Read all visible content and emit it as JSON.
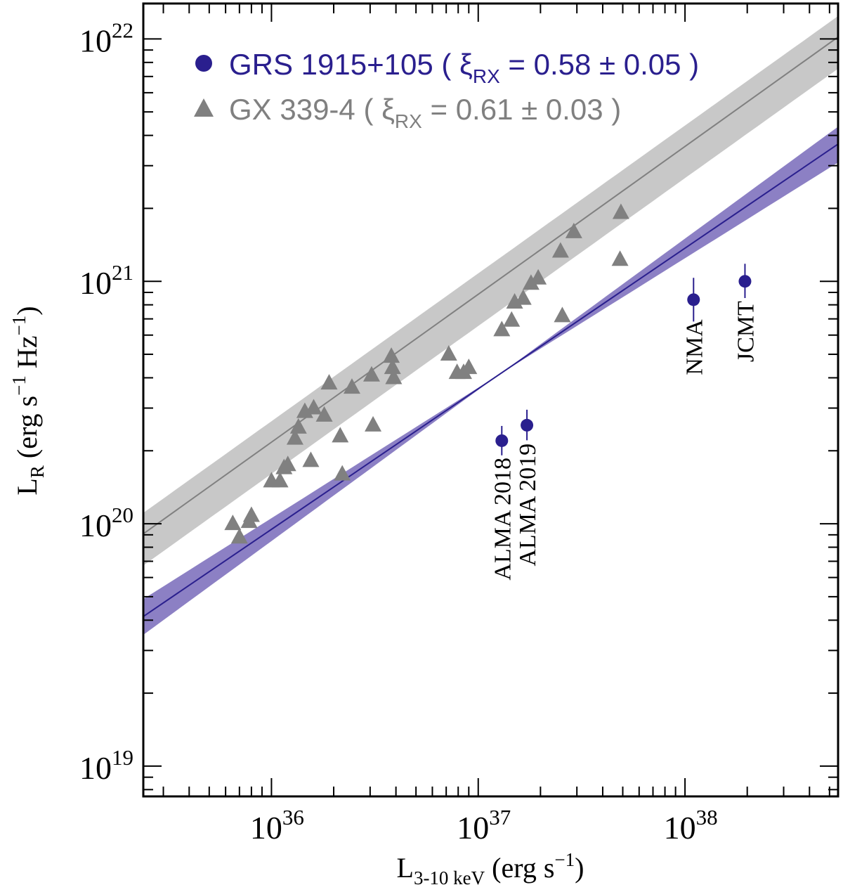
{
  "chart_data": {
    "type": "scatter",
    "title": "",
    "xlabel": {
      "main": "L",
      "sub": "3-10 keV",
      "unit_pre": " (erg s",
      "unit_sup": "−1",
      "unit_post": ")"
    },
    "ylabel": {
      "main": "L",
      "sub": "R",
      "p1": " (erg s",
      "s1": "−1",
      "p2": " Hz",
      "s2": "−1",
      "p3": ")"
    },
    "xscale": "log",
    "yscale": "log",
    "xlim": [
      2.4e+35,
      5.5e+38
    ],
    "ylim": [
      7.5e+18,
      1.4e+22
    ],
    "x_ticks": [
      {
        "value": 1e+36,
        "base": "10",
        "exp": "36"
      },
      {
        "value": 1e+37,
        "base": "10",
        "exp": "37"
      },
      {
        "value": 1e+38,
        "base": "10",
        "exp": "38"
      }
    ],
    "y_ticks": [
      {
        "value": 1e+19,
        "base": "10",
        "exp": "19"
      },
      {
        "value": 1e+20,
        "base": "10",
        "exp": "20"
      },
      {
        "value": 1e+21,
        "base": "10",
        "exp": "21"
      },
      {
        "value": 1e+22,
        "base": "10",
        "exp": "22"
      }
    ],
    "legend_position": "top-left",
    "series": [
      {
        "name": "GX 339-4",
        "legend": {
          "pre": "GX 339-4 ( ",
          "xi": "ξ",
          "sub": "RX",
          "post": " = 0.61 ± 0.03 )"
        },
        "marker": "triangle",
        "color": "#808080",
        "band_color": "#c8c8c8",
        "fit": {
          "slope": 0.61,
          "norm_at_1e36": 2.17e+20,
          "band_low_factor": 0.74,
          "band_high_factor": 1.22
        },
        "points": [
          {
            "x": 6.5e+35,
            "y": 1e+20
          },
          {
            "x": 7e+35,
            "y": 8.8e+19
          },
          {
            "x": 7.8e+35,
            "y": 1.02e+20
          },
          {
            "x": 8e+35,
            "y": 1.08e+20
          },
          {
            "x": 1e+36,
            "y": 1.5e+20
          },
          {
            "x": 1.1e+36,
            "y": 1.5e+20
          },
          {
            "x": 1.15e+36,
            "y": 1.7e+20
          },
          {
            "x": 1.2e+36,
            "y": 1.75e+20
          },
          {
            "x": 1.3e+36,
            "y": 2.25e+20
          },
          {
            "x": 1.35e+36,
            "y": 2.5e+20
          },
          {
            "x": 1.45e+36,
            "y": 2.9e+20
          },
          {
            "x": 1.55e+36,
            "y": 1.82e+20
          },
          {
            "x": 1.6e+36,
            "y": 3e+20
          },
          {
            "x": 1.8e+36,
            "y": 2.8e+20
          },
          {
            "x": 1.9e+36,
            "y": 3.8e+20
          },
          {
            "x": 2.15e+36,
            "y": 2.3e+20
          },
          {
            "x": 2.2e+36,
            "y": 1.6e+20
          },
          {
            "x": 2.45e+36,
            "y": 3.65e+20
          },
          {
            "x": 3.05e+36,
            "y": 4.1e+20
          },
          {
            "x": 3.1e+36,
            "y": 2.55e+20
          },
          {
            "x": 3.8e+36,
            "y": 4.9e+20
          },
          {
            "x": 3.85e+36,
            "y": 4.4e+20
          },
          {
            "x": 3.9e+36,
            "y": 4e+20
          },
          {
            "x": 7.2e+36,
            "y": 5e+20
          },
          {
            "x": 7.9e+36,
            "y": 4.2e+20
          },
          {
            "x": 8.5e+36,
            "y": 4.2e+20
          },
          {
            "x": 9e+36,
            "y": 4.4e+20
          },
          {
            "x": 1.3e+37,
            "y": 6.3e+20
          },
          {
            "x": 1.45e+37,
            "y": 6.9e+20
          },
          {
            "x": 1.5e+37,
            "y": 8.2e+20
          },
          {
            "x": 1.65e+37,
            "y": 8.5e+20
          },
          {
            "x": 1.8e+37,
            "y": 9.8e+20
          },
          {
            "x": 1.95e+37,
            "y": 1.03e+21
          },
          {
            "x": 2.5e+37,
            "y": 1.33e+21
          },
          {
            "x": 2.55e+37,
            "y": 7.2e+20
          },
          {
            "x": 2.9e+37,
            "y": 1.6e+21
          },
          {
            "x": 4.9e+37,
            "y": 1.92e+21
          },
          {
            "x": 4.85e+37,
            "y": 1.23e+21
          }
        ]
      },
      {
        "name": "GRS 1915+105",
        "legend": {
          "pre": "GRS 1915+105 ( ",
          "xi": "ξ",
          "sub": "RX",
          "post": " = 0.58 ± 0.05 )"
        },
        "marker": "circle",
        "color": "#2a1f8e",
        "band_color": "#8c80c4",
        "fit": {
          "slope": 0.58,
          "norm_at_1e36": 9.48e+19,
          "band_low_factor": 0.84,
          "band_high_factor": 1.18
        },
        "points": [
          {
            "x": 1.3e+37,
            "y": 2.2e+20,
            "yerr_lo": 1.8e+19,
            "yerr_hi": 2e+19,
            "label": "ALMA 2018",
            "label_side": "left"
          },
          {
            "x": 1.72e+37,
            "y": 2.55e+20,
            "yerr_lo": 2.2e+19,
            "yerr_hi": 2.5e+19,
            "label": "ALMA 2019",
            "label_side": "right"
          },
          {
            "x": 1.1e+38,
            "y": 8.4e+20,
            "yerr_lo": 1.2e+20,
            "yerr_hi": 1.4e+20,
            "label": "NMA",
            "label_side": "below"
          },
          {
            "x": 1.95e+38,
            "y": 1e+21,
            "yerr_lo": 1e+20,
            "yerr_hi": 1.2e+20,
            "label": "JCMT",
            "label_side": "below"
          }
        ]
      }
    ]
  }
}
